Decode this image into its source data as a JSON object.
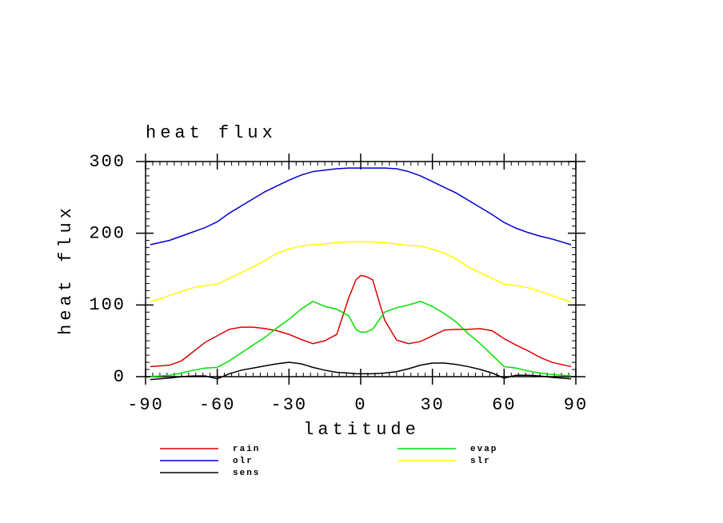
{
  "chart_data": {
    "type": "line",
    "title": "heat flux",
    "x_label": "latitude",
    "y_label": "heat flux",
    "x": [
      -88,
      -80,
      -75,
      -70,
      -65,
      -60,
      -55,
      -50,
      -45,
      -40,
      -35,
      -30,
      -25,
      -20,
      -15,
      -10,
      -5,
      -2,
      0,
      2,
      5,
      10,
      15,
      20,
      25,
      30,
      35,
      40,
      45,
      50,
      55,
      60,
      65,
      70,
      75,
      80,
      88
    ],
    "series": [
      {
        "name": "rain",
        "color": "#e00000",
        "values": [
          14,
          16,
          22,
          35,
          48,
          57,
          66,
          69,
          69,
          67,
          64,
          59,
          52,
          46,
          50,
          59,
          110,
          135,
          141,
          140,
          135,
          79,
          51,
          46,
          49,
          57,
          65,
          66,
          66,
          67,
          64,
          53,
          44,
          36,
          27,
          20,
          14
        ]
      },
      {
        "name": "evap",
        "color": "#00e000",
        "values": [
          0,
          2,
          5,
          9,
          12,
          13,
          22,
          33,
          44,
          55,
          68,
          80,
          94,
          105,
          98,
          94,
          85,
          66,
          62,
          62,
          66,
          90,
          96,
          100,
          105,
          98,
          88,
          76,
          60,
          46,
          30,
          14,
          12,
          8,
          5,
          3,
          1
        ]
      },
      {
        "name": "olr",
        "color": "#0000d0",
        "values": [
          184,
          190,
          196,
          202,
          208,
          216,
          228,
          238,
          248,
          258,
          266,
          274,
          281,
          286,
          288,
          290,
          291,
          291,
          291,
          291,
          291,
          291,
          290,
          286,
          280,
          272,
          264,
          256,
          246,
          236,
          226,
          215,
          207,
          201,
          196,
          192,
          184
        ]
      },
      {
        "name": "slr",
        "color": "#ffff00",
        "values": [
          104,
          113,
          119,
          124,
          127,
          129,
          137,
          145,
          153,
          162,
          172,
          178,
          182,
          184,
          185,
          187,
          188,
          188,
          188,
          188,
          188,
          187,
          185,
          183,
          182,
          178,
          172,
          164,
          153,
          145,
          137,
          129,
          127,
          124,
          119,
          113,
          104
        ]
      },
      {
        "name": "sens",
        "color": "#000000",
        "values": [
          -4,
          -2,
          0,
          1,
          1,
          -3,
          4,
          9,
          12,
          15,
          18,
          20,
          18,
          13,
          9,
          6,
          5,
          4,
          4,
          4,
          4,
          5,
          7,
          11,
          16,
          19,
          19,
          17,
          14,
          10,
          5,
          -2,
          2,
          2,
          1,
          -1,
          -3
        ]
      }
    ],
    "xlim": [
      -90,
      90
    ],
    "xticks": [
      -90,
      -60,
      -30,
      0,
      30,
      60,
      90
    ],
    "ylim": [
      0,
      300
    ],
    "yticks": [
      0,
      100,
      200,
      300
    ]
  }
}
